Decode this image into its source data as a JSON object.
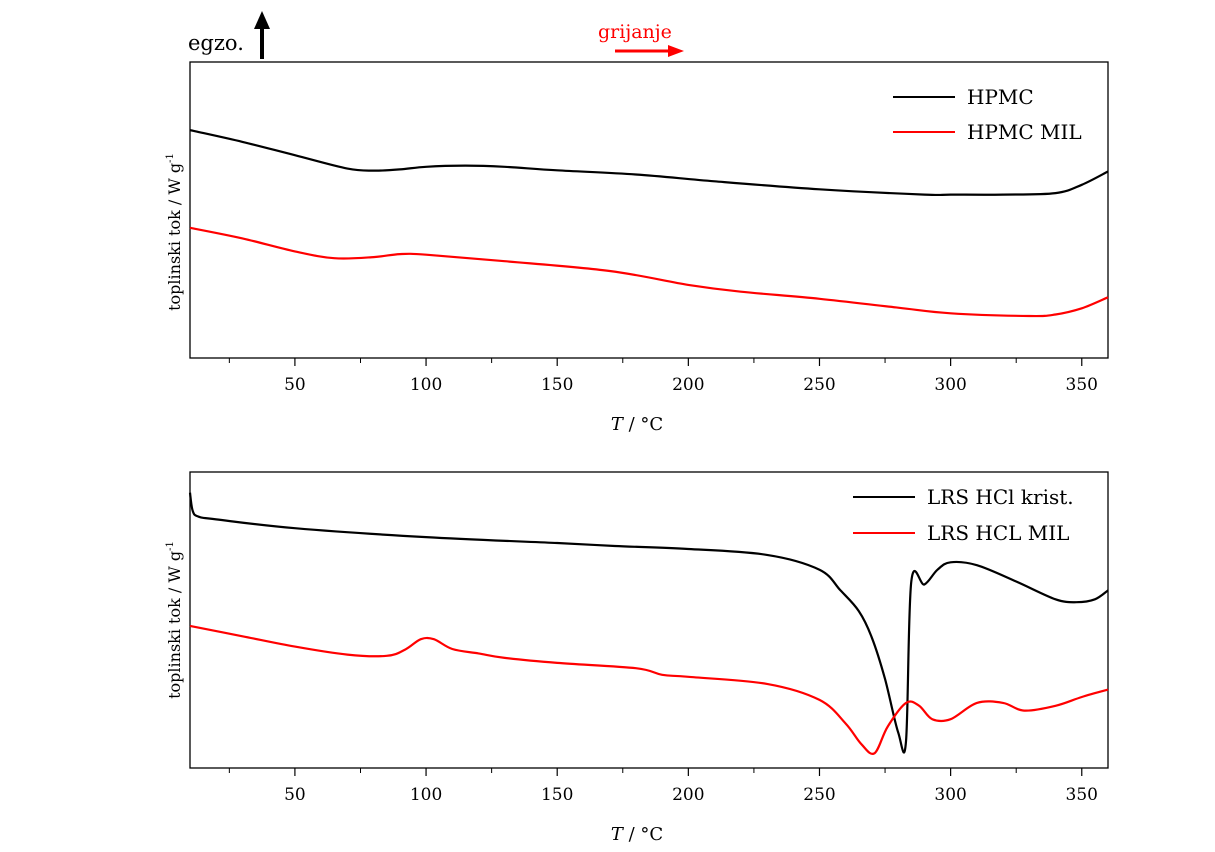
{
  "figure": {
    "exo_label": "egzo.",
    "heating_label": "grijanje",
    "heating_color": "#ff0000"
  },
  "chart_data": [
    {
      "type": "line",
      "title": "",
      "xlabel_var": "T",
      "xlabel_unit": " / °C",
      "ylabel": "toplinski tok / W g",
      "ylabel_sup": "-1",
      "xlim": [
        10,
        360
      ],
      "ylim": [
        0,
        100
      ],
      "xticks": [
        50,
        100,
        150,
        200,
        250,
        300,
        350
      ],
      "xticks_minor": [
        25,
        75,
        125,
        175,
        225,
        275,
        325
      ],
      "y_tick_labels": false,
      "legend_position": "top-right",
      "series": [
        {
          "name": "HPMC",
          "color": "#000000",
          "x": [
            10,
            30,
            50,
            70,
            80,
            90,
            100,
            115,
            130,
            150,
            180,
            210,
            250,
            290,
            300,
            320,
            340,
            350,
            360
          ],
          "y": [
            77,
            73,
            68.5,
            64,
            63.3,
            63.7,
            64.6,
            65,
            64.6,
            63.4,
            62,
            59.7,
            57,
            55.2,
            55.2,
            55.2,
            55.7,
            58.5,
            63
          ]
        },
        {
          "name": "HPMC MIL",
          "color": "#ff0000",
          "x": [
            10,
            30,
            50,
            65,
            80,
            90,
            100,
            130,
            170,
            200,
            220,
            250,
            280,
            300,
            330,
            340,
            350,
            360
          ],
          "y": [
            44,
            40.4,
            36,
            33.7,
            34.1,
            35.1,
            34.9,
            32.7,
            29.4,
            24.7,
            22.4,
            20,
            17,
            15.1,
            14.2,
            14.7,
            16.8,
            20.5
          ]
        }
      ]
    },
    {
      "type": "line",
      "title": "",
      "xlabel_var": "T",
      "xlabel_unit": " / °C",
      "ylabel": "toplinski tok / W g",
      "ylabel_sup": "-1",
      "xlim": [
        10,
        360
      ],
      "ylim": [
        0,
        100
      ],
      "xticks": [
        50,
        100,
        150,
        200,
        250,
        300,
        350
      ],
      "xticks_minor": [
        25,
        75,
        125,
        175,
        225,
        275,
        325
      ],
      "y_tick_labels": false,
      "legend_position": "top-right",
      "series": [
        {
          "name": "LRS HCl krist.",
          "color": "#000000",
          "x": [
            10,
            11,
            13,
            20,
            50,
            100,
            150,
            172,
            200,
            230,
            250,
            258,
            265,
            270,
            275,
            280,
            283,
            285,
            290,
            295,
            300,
            310,
            325,
            340,
            348,
            355,
            360
          ],
          "y": [
            93,
            87,
            85,
            84,
            81,
            78,
            76,
            75,
            74,
            72,
            67,
            60,
            53,
            44,
            30,
            12,
            9,
            63,
            62,
            67,
            69.5,
            68.5,
            63,
            57,
            56,
            57,
            60
          ]
        },
        {
          "name": "LRS HCL MIL",
          "color": "#ff0000",
          "x": [
            10,
            30,
            50,
            70,
            85,
            92,
            98,
            103,
            110,
            120,
            130,
            150,
            180,
            190,
            200,
            230,
            250,
            260,
            266,
            271,
            276,
            283,
            288,
            293,
            300,
            310,
            320,
            328,
            340,
            350,
            360
          ],
          "y": [
            48,
            44.5,
            41,
            38.3,
            37.9,
            40,
            43.5,
            43.5,
            40.2,
            38.7,
            37.2,
            35.5,
            33.7,
            31.5,
            30.8,
            28.4,
            23,
            15,
            8,
            5,
            14,
            22,
            21,
            16.5,
            16.5,
            22,
            22,
            19.4,
            21,
            24,
            26.5
          ]
        }
      ]
    }
  ]
}
